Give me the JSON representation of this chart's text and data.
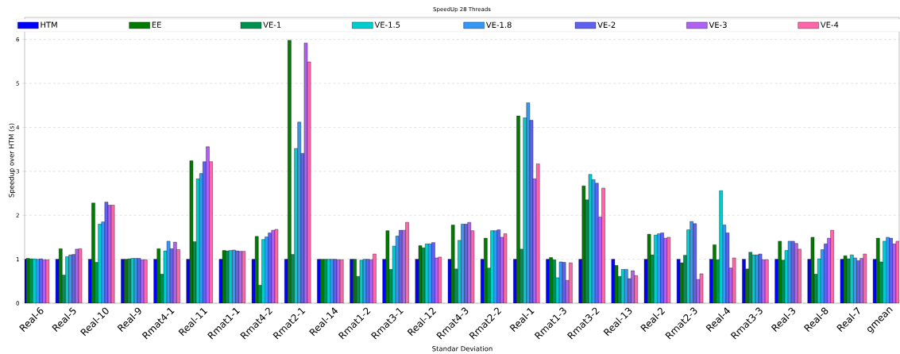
{
  "chart_data": {
    "type": "bar",
    "title": "SpeedUp 28 Threads",
    "xlabel": "Standar Deviation",
    "ylabel": "Speedup over HTM (s)",
    "categories": [
      "Real-6",
      "Real-5",
      "Real-10",
      "Real-9",
      "Rmat4-1",
      "Real-11",
      "Rmat1-1",
      "Rmat4-2",
      "Rmat2-1",
      "Real-14",
      "Rmat1-2",
      "Rmat3-1",
      "Real-12",
      "Rmat4-3",
      "Rmat2-2",
      "Real-1",
      "Rmat1-3",
      "Rmat3-2",
      "Real-13",
      "Real-2",
      "Rmat2-3",
      "Real-4",
      "Rmat3-3",
      "Real-3",
      "Real-8",
      "Real-7",
      "gmean"
    ],
    "series": [
      {
        "name": "HTM",
        "color": "#0000ff",
        "values": [
          1,
          1,
          1,
          1,
          1,
          1,
          1,
          1,
          1,
          1,
          1,
          1,
          1,
          1,
          1,
          1,
          1,
          1,
          1,
          1,
          1,
          1,
          1,
          1,
          1,
          1,
          1
        ]
      },
      {
        "name": "EE",
        "color": "#007a00",
        "values": [
          1.02,
          1.24,
          2.28,
          1.0,
          1.24,
          3.24,
          1.2,
          1.52,
          5.98,
          1.0,
          1.0,
          1.65,
          1.31,
          1.78,
          1.48,
          4.26,
          1.04,
          2.67,
          0.86,
          1.57,
          0.92,
          1.33,
          0.78,
          1.41,
          1.5,
          1.08,
          1.48
        ]
      },
      {
        "name": "VE-1",
        "color": "#009150",
        "values": [
          1.01,
          0.64,
          0.93,
          1.01,
          0.66,
          1.4,
          1.19,
          0.41,
          1.11,
          1.0,
          0.61,
          0.77,
          1.26,
          0.78,
          0.8,
          1.23,
          0.99,
          2.35,
          0.61,
          1.1,
          1.09,
          0.99,
          1.16,
          0.98,
          0.66,
          1.01,
          0.94
        ]
      },
      {
        "name": "VE-1.5",
        "color": "#00cdcd",
        "values": [
          1.01,
          1.06,
          1.8,
          1.02,
          1.19,
          2.83,
          1.2,
          1.45,
          3.52,
          1.0,
          0.98,
          1.3,
          1.35,
          1.43,
          1.65,
          4.22,
          0.58,
          2.93,
          0.77,
          1.55,
          1.67,
          2.56,
          1.1,
          1.2,
          1.01,
          1.1,
          1.41
        ]
      },
      {
        "name": "VE-1.8",
        "color": "#3398f5",
        "values": [
          1.0,
          1.1,
          1.85,
          1.02,
          1.41,
          2.95,
          1.21,
          1.51,
          4.12,
          1.0,
          1.0,
          1.53,
          1.35,
          1.8,
          1.65,
          4.56,
          0.94,
          2.81,
          0.77,
          1.58,
          1.86,
          1.78,
          1.1,
          1.41,
          1.22,
          1.03,
          1.5
        ]
      },
      {
        "name": "VE-2",
        "color": "#6161f0",
        "values": [
          1.01,
          1.11,
          2.3,
          1.02,
          1.24,
          3.22,
          1.19,
          1.6,
          3.41,
          1.0,
          1.0,
          1.66,
          1.38,
          1.8,
          1.67,
          4.16,
          0.93,
          2.73,
          0.56,
          1.6,
          1.81,
          1.6,
          1.12,
          1.41,
          1.35,
          0.97,
          1.48
        ]
      },
      {
        "name": "VE-3",
        "color": "#b060f2",
        "values": [
          0.99,
          1.23,
          2.23,
          0.99,
          1.39,
          3.56,
          1.18,
          1.66,
          5.92,
          0.99,
          0.99,
          1.66,
          1.03,
          1.84,
          1.5,
          2.83,
          0.52,
          1.96,
          0.74,
          1.48,
          0.54,
          0.8,
          0.99,
          1.36,
          1.48,
          1.02,
          1.35
        ]
      },
      {
        "name": "VE-4",
        "color": "#ff66aa",
        "values": [
          0.99,
          1.24,
          2.23,
          0.99,
          1.22,
          3.22,
          1.18,
          1.68,
          5.49,
          0.99,
          1.12,
          1.84,
          1.05,
          1.65,
          1.58,
          3.17,
          0.92,
          2.62,
          0.63,
          1.5,
          0.67,
          1.03,
          0.99,
          1.23,
          1.66,
          1.12,
          1.41
        ]
      }
    ],
    "ylim": [
      0,
      6.5
    ],
    "yticks": [
      0,
      1,
      2,
      3,
      4,
      5,
      6
    ],
    "grid": "y",
    "legend": "top"
  }
}
